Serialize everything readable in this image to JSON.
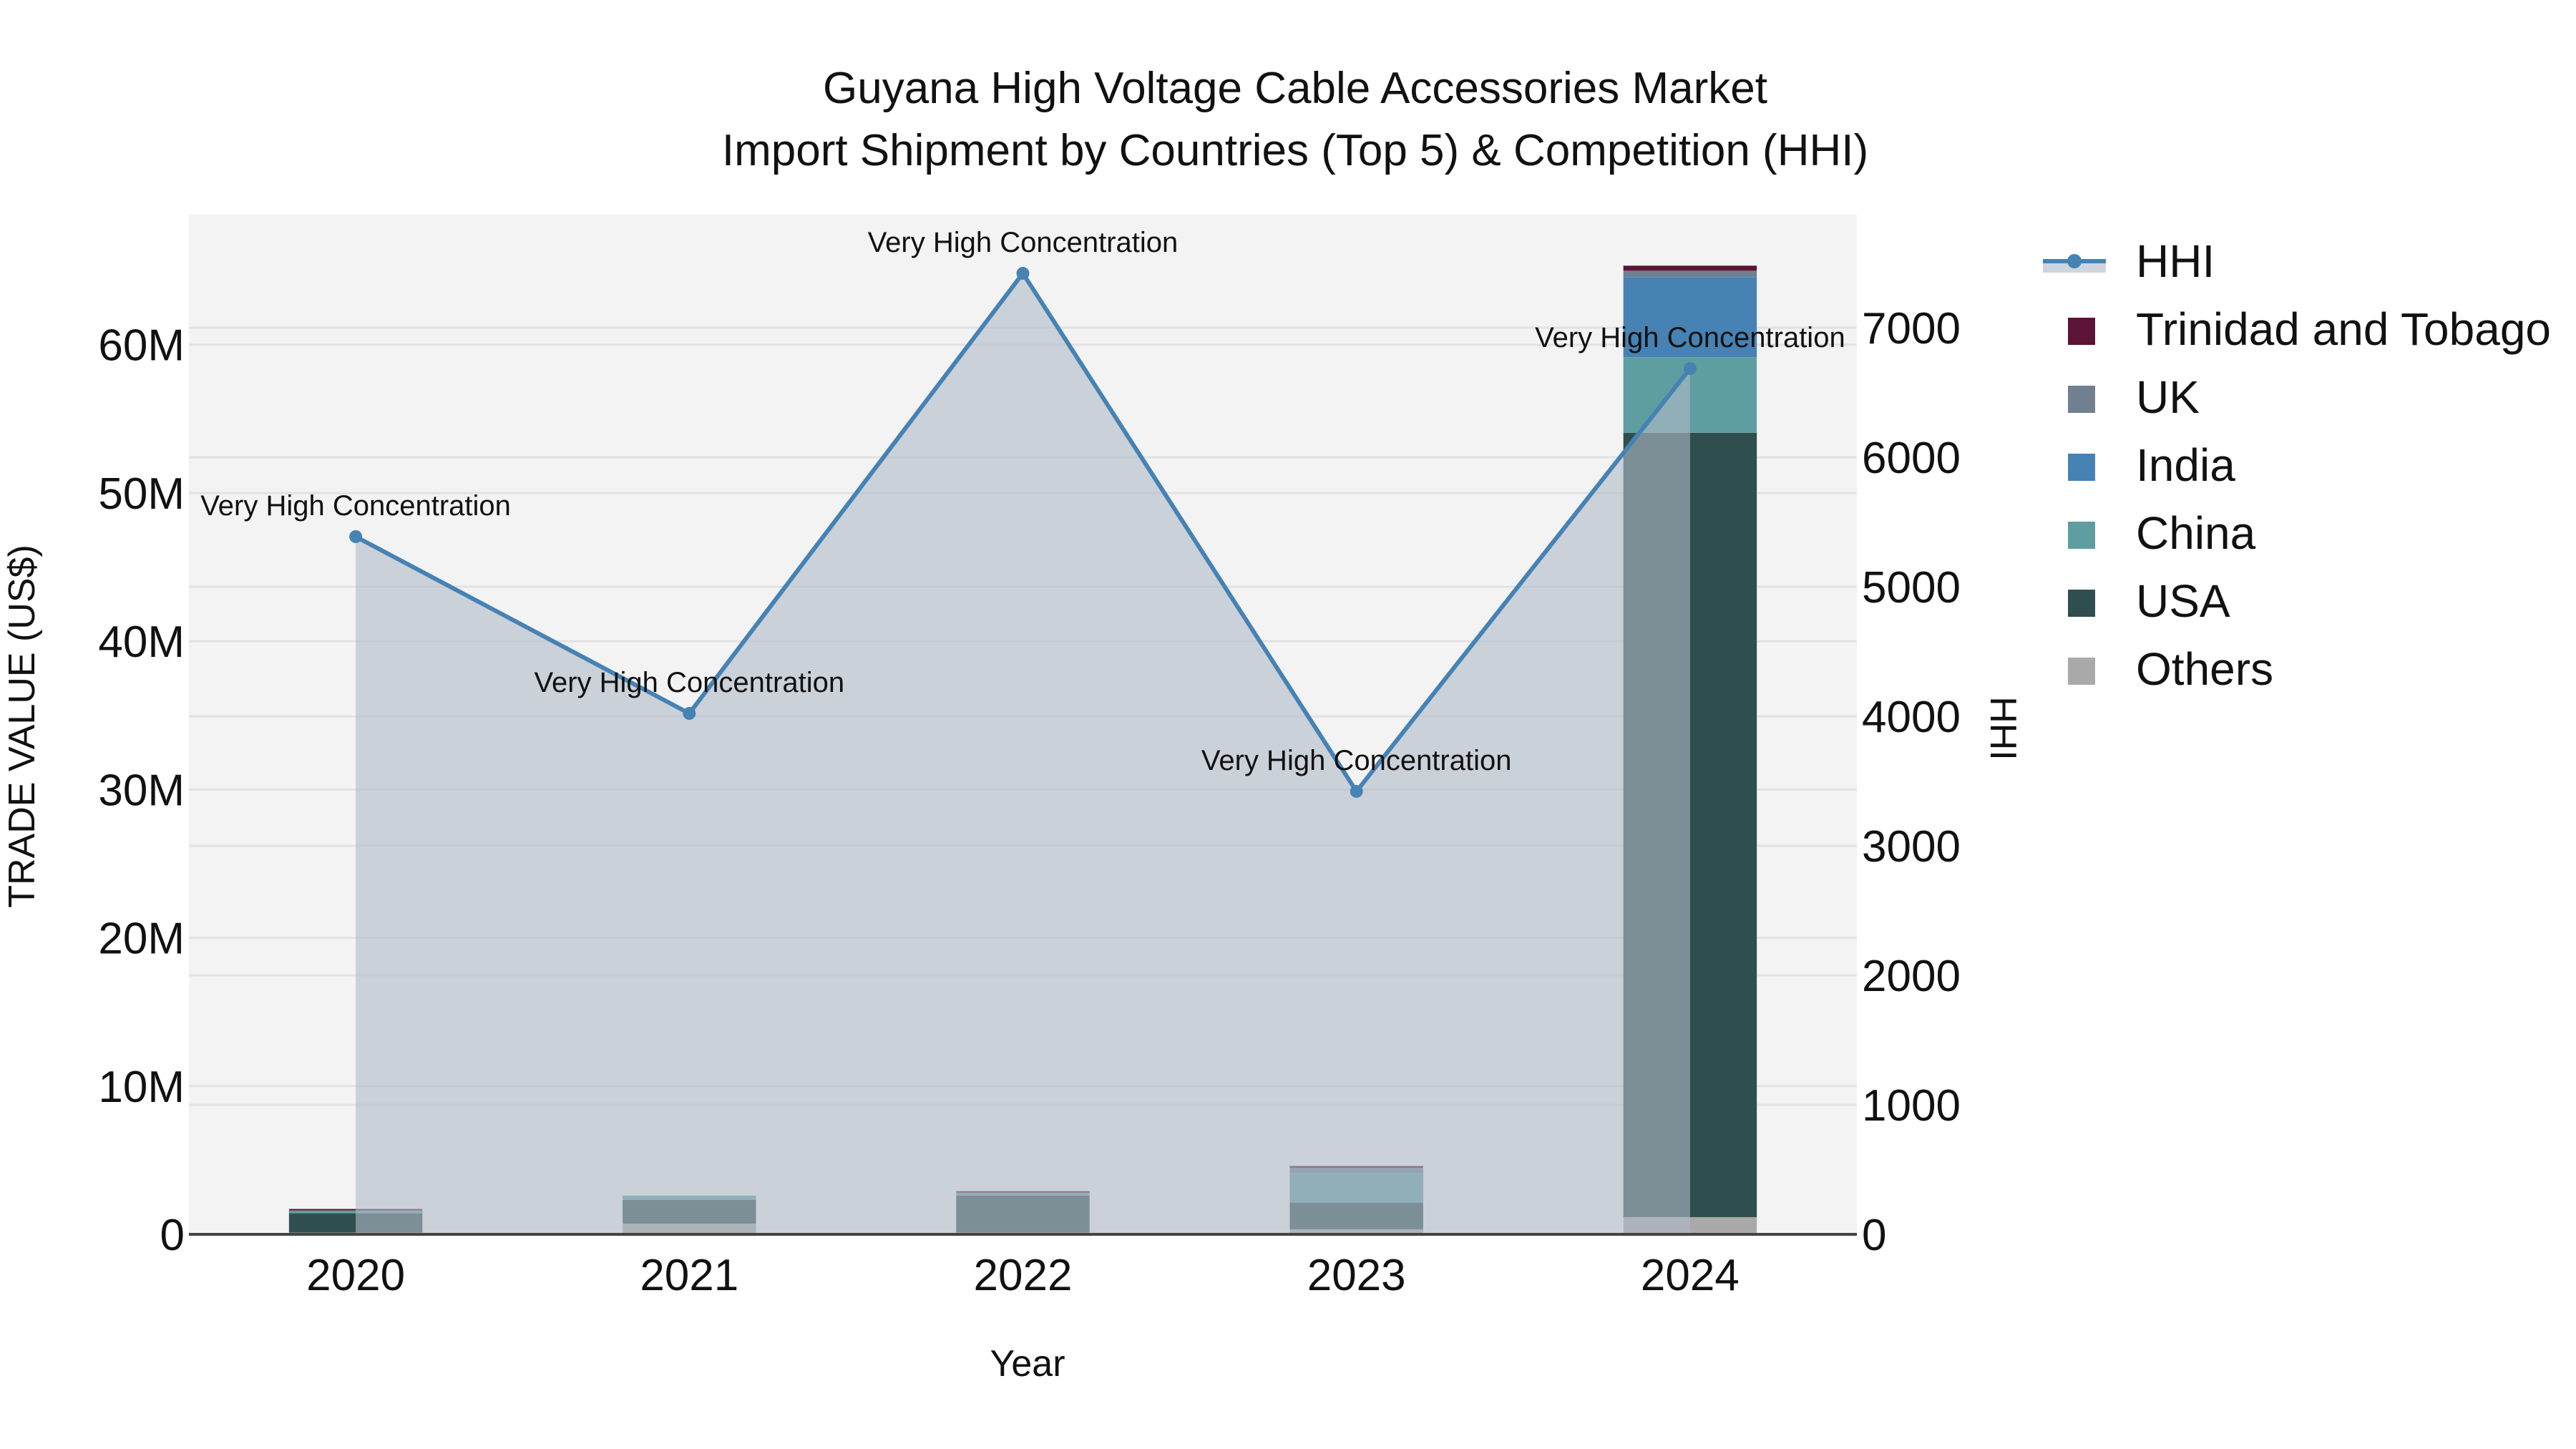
{
  "title": {
    "line1": "Guyana High Voltage Cable Accessories Market",
    "line2": "Import Shipment by Countries (Top 5) & Competition (HHI)"
  },
  "axes": {
    "x_title": "Year",
    "y_left_title": "TRADE VALUE (US$)",
    "y_right_title": "HHI",
    "x_ticks": [
      "2020",
      "2021",
      "2022",
      "2023",
      "2024"
    ],
    "y_left_ticks": [
      "0",
      "10M",
      "20M",
      "30M",
      "40M",
      "50M",
      "60M"
    ],
    "y_right_ticks": [
      "0",
      "1000",
      "2000",
      "3000",
      "4000",
      "5000",
      "6000",
      "7000"
    ]
  },
  "legend": {
    "items": [
      {
        "label": "HHI",
        "type": "line",
        "color": "#4682b4"
      },
      {
        "label": "Trinidad and Tobago",
        "type": "bar",
        "color": "#5c1436"
      },
      {
        "label": "UK",
        "type": "bar",
        "color": "#708090"
      },
      {
        "label": "India",
        "type": "bar",
        "color": "#4682b4"
      },
      {
        "label": "China",
        "type": "bar",
        "color": "#5f9ea0"
      },
      {
        "label": "USA",
        "type": "bar",
        "color": "#2f4f4f"
      },
      {
        "label": "Others",
        "type": "bar",
        "color": "#a9a9a9"
      }
    ]
  },
  "annotations": [
    {
      "year": "2020",
      "text": "Very High Concentration"
    },
    {
      "year": "2021",
      "text": "Very High Concentration"
    },
    {
      "year": "2022",
      "text": "Very High Concentration"
    },
    {
      "year": "2023",
      "text": "Very High Concentration"
    },
    {
      "year": "2024",
      "text": "Very High Concentration"
    }
  ],
  "colors": {
    "plot_bg": "#f3f3f3",
    "grid": "#e2e2e2",
    "hhi_line": "#4682b4",
    "hhi_fill": "rgba(176,186,200,0.6)",
    "zero_line": "#444444"
  },
  "chart_data": {
    "type": "bar",
    "title": "Guyana High Voltage Cable Accessories Market — Import Shipment by Countries (Top 5) & Competition (HHI)",
    "xlabel": "Year",
    "ylabel": "TRADE VALUE (US$)",
    "y2label": "HHI",
    "categories": [
      "2020",
      "2021",
      "2022",
      "2023",
      "2024"
    ],
    "stacked": true,
    "ylim": [
      0,
      68770000
    ],
    "y2lim": [
      0,
      7873
    ],
    "grid": true,
    "legend_position": "right",
    "series": [
      {
        "name": "Others",
        "type": "bar",
        "color": "#a9a9a9",
        "values": [
          120000,
          720000,
          120000,
          340000,
          1160000
        ]
      },
      {
        "name": "USA",
        "type": "bar",
        "color": "#2f4f4f",
        "values": [
          1300000,
          1600000,
          2500000,
          1800000,
          52900000
        ]
      },
      {
        "name": "China",
        "type": "bar",
        "color": "#5f9ea0",
        "values": [
          190000,
          290000,
          190000,
          2000000,
          5100000
        ]
      },
      {
        "name": "India",
        "type": "bar",
        "color": "#4682b4",
        "values": [
          0,
          0,
          0,
          0,
          5400000
        ]
      },
      {
        "name": "UK",
        "type": "bar",
        "color": "#708090",
        "values": [
          0,
          0,
          0,
          340000,
          430000
        ]
      },
      {
        "name": "Trinidad and Tobago",
        "type": "bar",
        "color": "#5c1436",
        "values": [
          100000,
          0,
          100000,
          130000,
          340000
        ]
      },
      {
        "name": "HHI",
        "type": "line",
        "axis": "right",
        "color": "#4682b4",
        "fill": "tozeroy",
        "values": [
          5387,
          4022,
          7420,
          3420,
          6685
        ]
      }
    ],
    "annotations": [
      "Very High Concentration",
      "Very High Concentration",
      "Very High Concentration",
      "Very High Concentration",
      "Very High Concentration"
    ]
  }
}
